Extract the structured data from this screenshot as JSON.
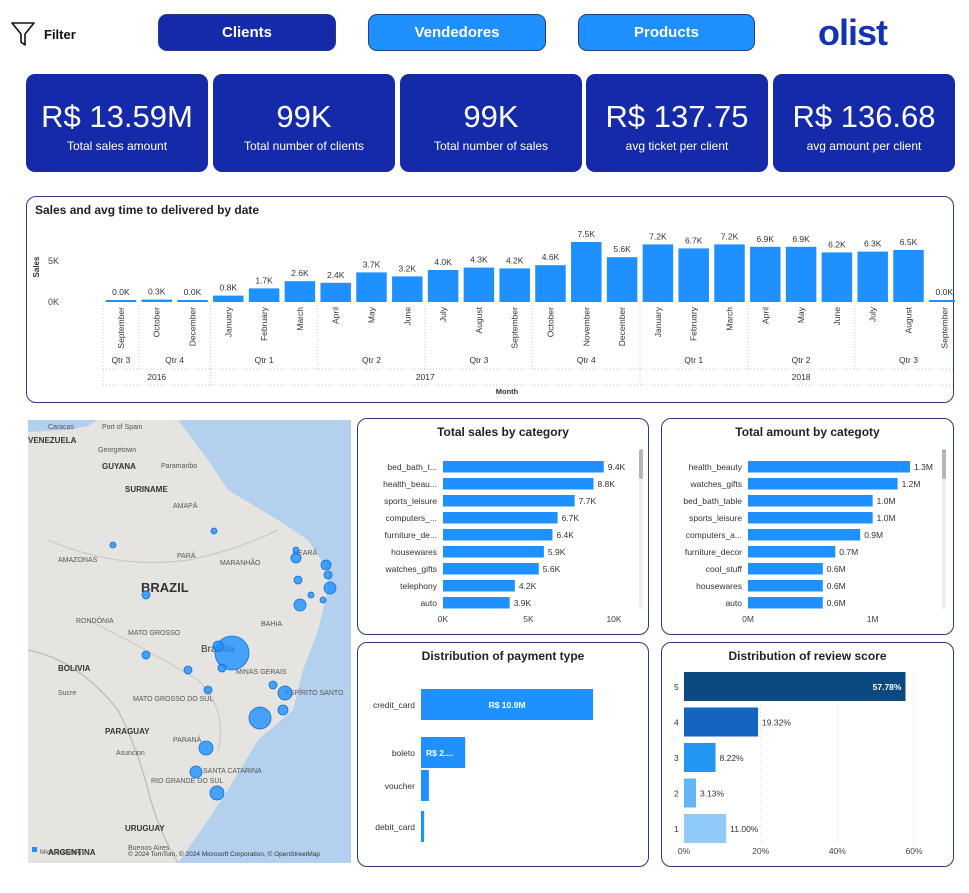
{
  "filter": {
    "label": "Filter"
  },
  "nav": {
    "clients": "Clients",
    "vendedores": "Vendedores",
    "products": "Products"
  },
  "logo": "olist",
  "kpis": [
    {
      "value": "R$ 13.59M",
      "label": "Total sales amount"
    },
    {
      "value": "99K",
      "label": "Total number of clients"
    },
    {
      "value": "99K",
      "label": "Total number of sales"
    },
    {
      "value": "R$ 137.75",
      "label": "avg ticket per client"
    },
    {
      "value": "R$ 136.68",
      "label": "avg amount per client"
    }
  ],
  "timeline": {
    "title": "Sales and avg time to delivered by date",
    "ylabel": "Sales",
    "xlabel": "Month",
    "yticks": [
      "5K",
      "0K"
    ],
    "months": [
      "September",
      "October",
      "December",
      "January",
      "February",
      "March",
      "April",
      "May",
      "June",
      "July",
      "August",
      "September",
      "October",
      "November",
      "December",
      "January",
      "February",
      "March",
      "April",
      "May",
      "June",
      "July",
      "August",
      "September"
    ],
    "values": [
      0.0,
      0.3,
      0.0,
      0.8,
      1.7,
      2.6,
      2.4,
      3.7,
      3.2,
      4.0,
      4.3,
      4.2,
      4.6,
      7.5,
      5.6,
      7.2,
      6.7,
      7.2,
      6.9,
      6.9,
      6.2,
      6.3,
      6.5,
      0.0
    ],
    "labels": [
      "0.0K",
      "0.3K",
      "0.0K",
      "0.8K",
      "1.7K",
      "2.6K",
      "2.4K",
      "3.7K",
      "3.2K",
      "4.0K",
      "4.3K",
      "4.2K",
      "4.6K",
      "7.5K",
      "5.6K",
      "7.2K",
      "6.7K",
      "7.2K",
      "6.9K",
      "6.9K",
      "6.2K",
      "6.3K",
      "6.5K",
      "0.0K"
    ],
    "quarters": [
      {
        "label": "Qtr 3",
        "from": 0,
        "to": 0
      },
      {
        "label": "Qtr 4",
        "from": 1,
        "to": 2
      },
      {
        "label": "Qtr 1",
        "from": 3,
        "to": 5
      },
      {
        "label": "Qtr 2",
        "from": 6,
        "to": 8
      },
      {
        "label": "Qtr 3",
        "from": 9,
        "to": 11
      },
      {
        "label": "Qtr 4",
        "from": 12,
        "to": 14
      },
      {
        "label": "Qtr 1",
        "from": 15,
        "to": 17
      },
      {
        "label": "Qtr 2",
        "from": 18,
        "to": 20
      },
      {
        "label": "Qtr 3",
        "from": 21,
        "to": 23
      }
    ],
    "years": [
      {
        "label": "2016",
        "from": 0,
        "to": 2
      },
      {
        "label": "2017",
        "from": 3,
        "to": 14
      },
      {
        "label": "2018",
        "from": 15,
        "to": 23
      }
    ]
  },
  "map": {
    "labels": [
      "Caracas",
      "Port of Spain",
      "VENEZUELA",
      "Georgetown",
      "GUYANA",
      "Paramaribo",
      "SURINAME",
      "AMAPÁ",
      "AMAZONAS",
      "PARÁ",
      "MARANHÃO",
      "CEARÁ",
      "BRAZIL",
      "RONDÔNIA",
      "MATO GROSSO",
      "BAHIA",
      "Brasília",
      "BOLIVIA",
      "Sucre",
      "MINAS GERAIS",
      "ESPÍRITO SANTO",
      "MATO GROSSO DO SUL",
      "PARAGUAY",
      "Asuncion",
      "PARANÁ",
      "SANTA CATARINA",
      "RIO GRANDE DO SUL",
      "URUGUAY",
      "Buenos Aires",
      "ARGENTINA"
    ],
    "attribution": "© 2024 TomTom, © 2024 Microsoft Corporation, © OpenStreetMap",
    "bing": "Microsoft Bing"
  },
  "chart_data": [
    {
      "type": "bar",
      "title": "Sales and avg time to delivered by date",
      "xlabel": "Month",
      "ylabel": "Sales",
      "categories": [
        "2016 Sep",
        "2016 Oct",
        "2016 Dec",
        "2017 Jan",
        "2017 Feb",
        "2017 Mar",
        "2017 Apr",
        "2017 May",
        "2017 Jun",
        "2017 Jul",
        "2017 Aug",
        "2017 Sep",
        "2017 Oct",
        "2017 Nov",
        "2017 Dec",
        "2018 Jan",
        "2018 Feb",
        "2018 Mar",
        "2018 Apr",
        "2018 May",
        "2018 Jun",
        "2018 Jul",
        "2018 Aug",
        "2018 Sep"
      ],
      "values": [
        0,
        300,
        0,
        800,
        1700,
        2600,
        2400,
        3700,
        3200,
        4000,
        4300,
        4200,
        4600,
        7500,
        5600,
        7200,
        6700,
        7200,
        6900,
        6900,
        6200,
        6300,
        6500,
        0
      ],
      "ylim": [
        0,
        7500
      ]
    },
    {
      "type": "bar",
      "orientation": "horizontal",
      "title": "Total sales by category",
      "categories": [
        "bed_bath_t...",
        "health_beau...",
        "sports_leisure",
        "computers_...",
        "furniture_de...",
        "housewares",
        "watches_gifts",
        "telephony",
        "auto"
      ],
      "values": [
        9400,
        8800,
        7700,
        6700,
        6400,
        5900,
        5600,
        4200,
        3900
      ],
      "labels": [
        "9.4K",
        "8.8K",
        "7.7K",
        "6.7K",
        "6.4K",
        "5.9K",
        "5.6K",
        "4.2K",
        "3.9K"
      ],
      "xticks": [
        "0K",
        "5K",
        "10K"
      ],
      "xlim": [
        0,
        10000
      ]
    },
    {
      "type": "bar",
      "orientation": "horizontal",
      "title": "Total amount by categoty",
      "categories": [
        "health_beauty",
        "watches_gifts",
        "bed_bath_table",
        "sports_leisure",
        "computers_a...",
        "furniture_decor",
        "cool_stuff",
        "housewares",
        "auto"
      ],
      "values": [
        1300000,
        1200000,
        1000000,
        1000000,
        900000,
        700000,
        600000,
        600000,
        600000
      ],
      "labels": [
        "1.3M",
        "1.2M",
        "1.0M",
        "1.0M",
        "0.9M",
        "0.7M",
        "0.6M",
        "0.6M",
        "0.6M"
      ],
      "xticks": [
        "0M",
        "1M"
      ],
      "xlim": [
        0,
        1500000
      ]
    },
    {
      "type": "bar",
      "orientation": "horizontal",
      "title": "Distribution of payment type",
      "categories": [
        "credit_card",
        "boleto",
        "voucher",
        "debit_card"
      ],
      "values": [
        10.9,
        2.8,
        0.5,
        0.2
      ],
      "labels": [
        "R$ 10.9M",
        "R$ 2....",
        "",
        ""
      ],
      "xlim": [
        0,
        12
      ]
    },
    {
      "type": "bar",
      "orientation": "horizontal",
      "title": "Distribution of review score",
      "categories": [
        "5",
        "4",
        "3",
        "2",
        "1"
      ],
      "values": [
        57.78,
        19.32,
        8.22,
        3.13,
        11.0
      ],
      "labels": [
        "57.78%",
        "19.32%",
        "8.22%",
        "3.13%",
        "11.00%"
      ],
      "colors": [
        "#0b4a80",
        "#1565c0",
        "#2196f3",
        "#64b5f6",
        "#90caf9"
      ],
      "xticks": [
        "0%",
        "20%",
        "40%",
        "60%"
      ],
      "xlim": [
        0,
        60
      ]
    }
  ]
}
